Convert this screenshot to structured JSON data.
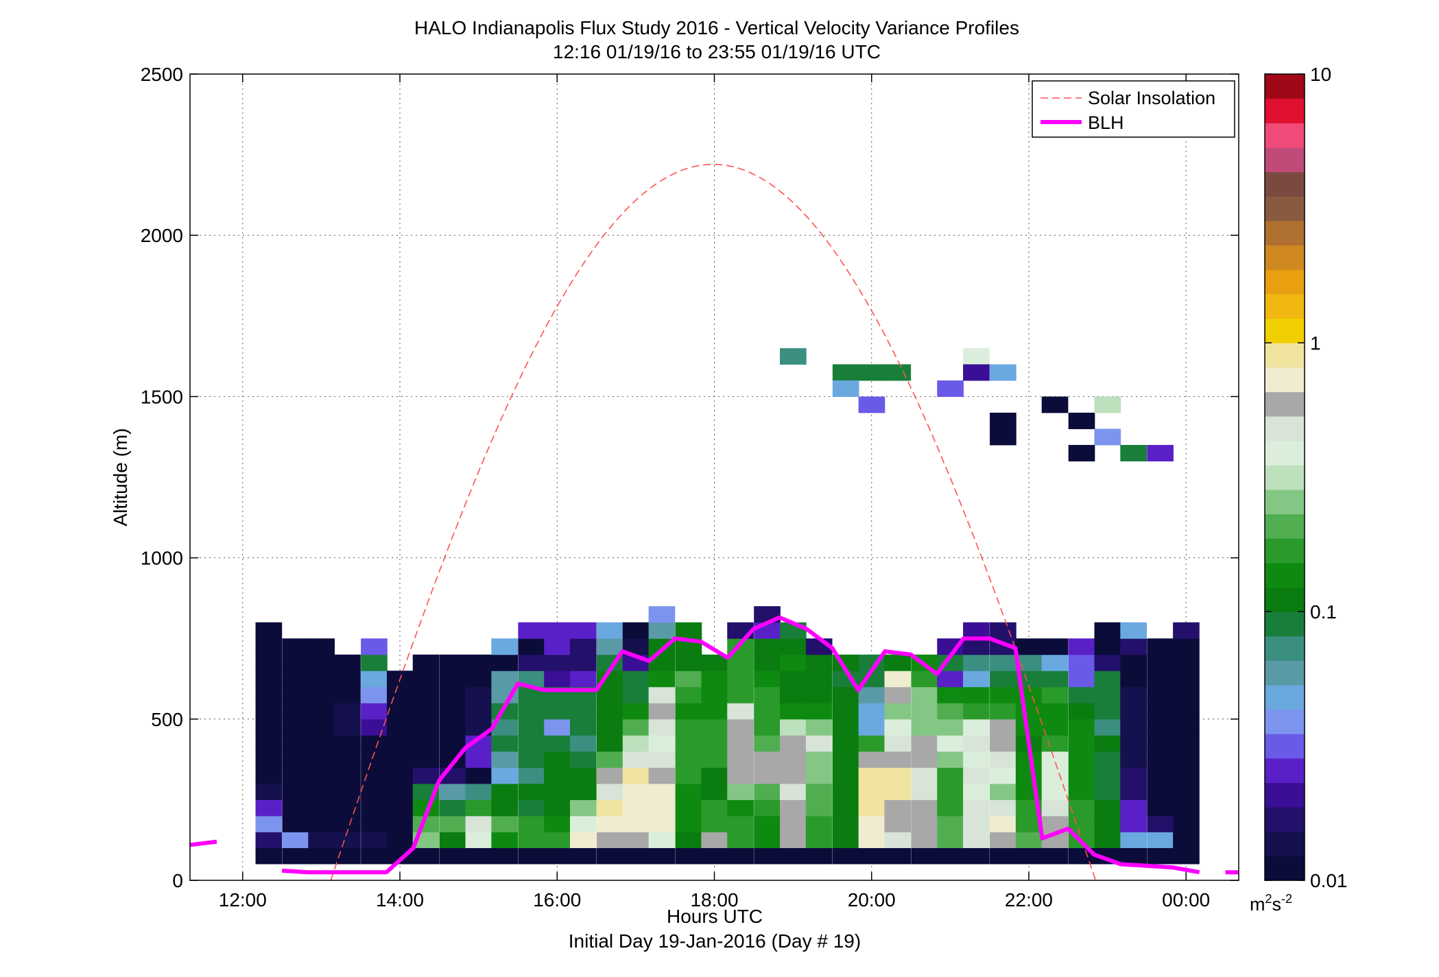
{
  "chart_data": {
    "type": "heatmap",
    "title": "HALO Indianapolis Flux Study 2016 - Vertical Velocity Variance Profiles",
    "subtitle": "12:16 01/19/16 to 23:55 01/19/16  UTC",
    "xlabel": "Hours UTC",
    "xlabel2": "Initial Day 19-Jan-2016 (Day # 19)",
    "ylabel": "Altitude (m)",
    "x_ticks": [
      {
        "hour": 12,
        "label": "12:00"
      },
      {
        "hour": 14,
        "label": "14:00"
      },
      {
        "hour": 16,
        "label": "16:00"
      },
      {
        "hour": 18,
        "label": "18:00"
      },
      {
        "hour": 20,
        "label": "20:00"
      },
      {
        "hour": 22,
        "label": "22:00"
      },
      {
        "hour": 24,
        "label": "00:00"
      }
    ],
    "y_ticks": [
      {
        "value": 0,
        "label": "0"
      },
      {
        "value": 500,
        "label": "500"
      },
      {
        "value": 1000,
        "label": "1000"
      },
      {
        "value": 1500,
        "label": "1500"
      },
      {
        "value": 2000,
        "label": "2000"
      },
      {
        "value": 2500,
        "label": "2500"
      }
    ],
    "xlim": [
      11.33,
      24.67
    ],
    "ylim": [
      0,
      2500
    ],
    "grid": true,
    "legend_position": "top-right",
    "legend": [
      {
        "name": "Solar Insolation",
        "color": "#ff5050",
        "style": "dashed"
      },
      {
        "name": "BLH",
        "color": "#ff00ff",
        "style": "solid"
      }
    ],
    "colorbar": {
      "scale": "log",
      "min": 0.01,
      "max": 10,
      "tick_labels": [
        "0.01",
        "0.1",
        "1",
        "10"
      ],
      "unit_base": "m",
      "unit_exp1": "2",
      "unit_mid": "s",
      "unit_exp2": "-2",
      "colors": [
        "#0b0c3a",
        "#15104e",
        "#23106a",
        "#3a0f96",
        "#5a20c8",
        "#6a5ae8",
        "#7c94ee",
        "#6aa8e0",
        "#5a9aa6",
        "#3a8f80",
        "#187e3a",
        "#0a7c10",
        "#0f8a10",
        "#2a9a2a",
        "#50ae50",
        "#84c784",
        "#bde0bd",
        "#dbeedb",
        "#d8e4d8",
        "#a8a8a8",
        "#f0ecd0",
        "#f0e4a0",
        "#f0d000",
        "#f0b810",
        "#e8a010",
        "#d08820",
        "#b07030",
        "#8a5a40",
        "#7a4a40",
        "#c04a78",
        "#f04a78",
        "#e01030",
        "#a00818"
      ]
    },
    "cell_width_hours": 0.333,
    "cell_height_m": 50,
    "cell_value_scale": "log10 of variance (m^2 s^-2)",
    "columns": [
      {
        "time": 12.33,
        "bottom": 100,
        "values": [
          -1.75,
          -1.45,
          -1.6,
          -1.9,
          -1.95,
          -1.95,
          -1.95,
          -1.95,
          -1.95,
          -1.95,
          -2,
          -2,
          -2,
          -2
        ]
      },
      {
        "time": 12.67,
        "bottom": 100,
        "values": [
          -1.45,
          -2,
          -2,
          -2,
          -2,
          -2,
          -2,
          -2,
          -2,
          -2,
          -2,
          -2,
          -2
        ]
      },
      {
        "time": 13.0,
        "bottom": 100,
        "values": [
          -1.9,
          -2,
          -2,
          -2,
          -2,
          -2,
          -2,
          -2,
          -2,
          -2,
          -2,
          -2,
          -2
        ]
      },
      {
        "time": 13.33,
        "bottom": 100,
        "values": [
          -1.9,
          -1.95,
          -1.95,
          -1.95,
          -1.95,
          -1.95,
          -1.95,
          -1.85,
          -1.9,
          -1.95,
          -1.95,
          -1.95
        ]
      },
      {
        "time": 13.67,
        "bottom": 100,
        "values": [
          -1.9,
          -2,
          -2,
          -1.95,
          -1.95,
          -1.95,
          -1.95,
          -1.7,
          -1.6,
          -1.45,
          -1.3,
          -1.05,
          -1.5
        ]
      },
      {
        "time": 14.0,
        "bottom": 100,
        "values": [
          -2,
          -2,
          -2,
          -2,
          -2,
          -2,
          -2,
          -2,
          -2,
          -2,
          -2
        ]
      },
      {
        "time": 14.33,
        "bottom": 100,
        "values": [
          -0.55,
          -0.65,
          -0.85,
          -1.05,
          -1.75,
          -1.95,
          -2,
          -2,
          -2,
          -2,
          -2,
          -2
        ]
      },
      {
        "time": 14.67,
        "bottom": 100,
        "values": [
          -0.95,
          -0.65,
          -1.05,
          -1.2,
          -1.75,
          -1.95,
          -2,
          -2,
          -2,
          -2,
          -2,
          -2
        ]
      },
      {
        "time": 15.0,
        "bottom": 100,
        "values": [
          -0.45,
          -0.35,
          -0.75,
          -1.1,
          -1.95,
          -1.55,
          -1.6,
          -1.85,
          -1.85,
          -1.9,
          -1.95,
          -1.95
        ]
      },
      {
        "time": 15.33,
        "bottom": 100,
        "values": [
          -0.85,
          -0.65,
          -0.95,
          -1.0,
          -1.35,
          -1.25,
          -1.05,
          -1.15,
          -1.05,
          -1.25,
          -1.2,
          -1.95,
          -1.35
        ]
      },
      {
        "time": 15.67,
        "bottom": 100,
        "values": [
          -0.75,
          -0.75,
          -1.05,
          -0.95,
          -1.1,
          -1.05,
          -1.05,
          -1.05,
          -1.05,
          -1.05,
          -1.1,
          -1.75,
          -1.95,
          -1.55
        ]
      },
      {
        "time": 16.0,
        "bottom": 100,
        "values": [
          -0.75,
          -0.85,
          -0.95,
          -0.95,
          -0.95,
          -1.0,
          -1.05,
          -1.4,
          -1.05,
          -1.05,
          -1.65,
          -1.75,
          -1.55,
          -1.55
        ]
      },
      {
        "time": 16.33,
        "bottom": 100,
        "values": [
          -0.15,
          -0.45,
          -0.55,
          -0.95,
          -1.0,
          -1.05,
          -1.1,
          -1.05,
          -1.05,
          -1.05,
          -1.55,
          -1.8,
          -1.75,
          -1.55
        ]
      },
      {
        "time": 16.67,
        "bottom": 100,
        "values": [
          -0.25,
          -0.15,
          -0.05,
          -0.35,
          -0.25,
          -0.65,
          -0.95,
          -1.0,
          -1.0,
          -1.0,
          -0.95,
          -1.05,
          -1.25,
          -1.3
        ]
      },
      {
        "time": 17.0,
        "bottom": 100,
        "values": [
          -0.2,
          -0.15,
          -0.1,
          -0.1,
          -0.05,
          -0.35,
          -0.5,
          -0.65,
          -0.85,
          -1.05,
          -1.05,
          -1.7,
          -1.9,
          -1.95
        ]
      },
      {
        "time": 17.33,
        "bottom": 100,
        "values": [
          -0.4,
          -0.1,
          -0.15,
          -0.15,
          -0.25,
          -0.35,
          -0.45,
          -0.35,
          -0.25,
          -0.35,
          -0.9,
          -0.95,
          -0.95,
          -1.2,
          -1.4
        ]
      },
      {
        "time": 17.67,
        "bottom": 100,
        "values": [
          -0.95,
          -0.85,
          -0.85,
          -0.85,
          -0.75,
          -0.75,
          -0.75,
          -0.75,
          -0.85,
          -0.75,
          -0.65,
          -0.95,
          -0.95,
          -1.0
        ]
      },
      {
        "time": 18.0,
        "bottom": 100,
        "values": [
          -0.25,
          -0.75,
          -0.75,
          -1.0,
          -1.0,
          -0.75,
          -0.75,
          -0.75,
          -0.85,
          -0.85,
          -0.85,
          -0.95
        ]
      },
      {
        "time": 18.33,
        "bottom": 100,
        "values": [
          -0.75,
          -0.75,
          -0.85,
          -0.55,
          -0.25,
          -0.2,
          -0.2,
          -0.25,
          -0.35,
          -0.75,
          -0.75,
          -0.75,
          -0.8,
          -1.75
        ]
      },
      {
        "time": 18.67,
        "bottom": 100,
        "values": [
          -0.85,
          -0.85,
          -0.75,
          -0.65,
          -0.2,
          -0.25,
          -0.65,
          -0.75,
          -0.8,
          -0.8,
          -0.85,
          -0.95,
          -1.0,
          -1.6,
          -1.75
        ]
      },
      {
        "time": 19.0,
        "bottom": 100,
        "values": [
          -0.25,
          -0.25,
          -0.2,
          -0.35,
          -0.2,
          -0.25,
          -0.25,
          -0.5,
          -0.85,
          -0.95,
          -0.95,
          -0.9,
          -1.0,
          -1.05
        ]
      },
      {
        "time": 19.33,
        "bottom": 100,
        "values": [
          -0.75,
          -0.75,
          -0.65,
          -0.65,
          -0.55,
          -0.55,
          -0.35,
          -0.55,
          -0.85,
          -0.95,
          -0.95,
          -1.0,
          -1.75
        ]
      },
      {
        "time": 19.67,
        "bottom": 100,
        "values": [
          -0.95,
          -0.95,
          -0.95,
          -1.0,
          -1.0,
          -0.95,
          -0.95,
          -0.95,
          -0.95,
          -1.0,
          -1.05,
          -1.0
        ]
      },
      {
        "time": 20.0,
        "bottom": 100,
        "values": [
          -0.1,
          -0.1,
          -0.05,
          -0.05,
          -0.05,
          -0.25,
          -0.75,
          -1.35,
          -1.35,
          -1.25,
          -1.05,
          -1.05
        ]
      },
      {
        "time": 20.33,
        "bottom": 100,
        "values": [
          -0.35,
          -0.25,
          -0.25,
          -0.05,
          -0.05,
          -0.25,
          -0.35,
          -0.45,
          -0.55,
          -0.25,
          -0.15,
          -0.95
        ]
      },
      {
        "time": 20.67,
        "bottom": 100,
        "values": [
          -0.25,
          -0.25,
          -0.25,
          -0.35,
          -0.35,
          -0.25,
          -0.25,
          -0.55,
          -0.55,
          -0.55,
          -0.75,
          -0.85
        ]
      },
      {
        "time": 21.0,
        "bottom": 100,
        "values": [
          -0.65,
          -0.65,
          -0.75,
          -0.75,
          -0.75,
          -0.55,
          -0.45,
          -0.55,
          -0.65,
          -0.85,
          -1.6,
          -1.05,
          -1.65
        ]
      },
      {
        "time": 21.33,
        "bottom": 100,
        "values": [
          -0.35,
          -0.35,
          -0.35,
          -0.45,
          -0.35,
          -0.45,
          -0.35,
          -0.45,
          -0.75,
          -0.85,
          -1.35,
          -1.1,
          -1.75,
          -1.7
        ]
      },
      {
        "time": 21.67,
        "bottom": 100,
        "values": [
          -0.25,
          -0.15,
          -0.35,
          -0.55,
          -0.45,
          -0.35,
          -0.25,
          -0.25,
          -0.75,
          -0.85,
          -1.05,
          -1.1,
          -1.8,
          -1.75
        ]
      },
      {
        "time": 22.0,
        "bottom": 100,
        "values": [
          -0.65,
          -0.75,
          -0.75,
          -0.85,
          -0.85,
          -0.85,
          -0.95,
          -0.85,
          -0.85,
          -0.85,
          -1.05,
          -1.1,
          -1.95
        ]
      },
      {
        "time": 22.33,
        "bottom": 100,
        "values": [
          -0.25,
          -0.25,
          -0.35,
          -0.45,
          -0.45,
          -0.45,
          -0.75,
          -0.85,
          -0.85,
          -0.75,
          -1.05,
          -1.35,
          -1.95
        ]
      },
      {
        "time": 22.67,
        "bottom": 100,
        "values": [
          -0.75,
          -0.75,
          -0.75,
          -0.85,
          -0.85,
          -0.85,
          -0.85,
          -0.85,
          -0.95,
          -1.05,
          -1.5,
          -1.5,
          -1.6
        ]
      },
      {
        "time": 23.0,
        "bottom": 100,
        "values": [
          -0.95,
          -0.95,
          -0.95,
          -1.05,
          -1.05,
          -1.05,
          -0.95,
          -1.1,
          -1.05,
          -1.05,
          -1.05,
          -1.75,
          -1.95,
          -1.95
        ]
      },
      {
        "time": 23.33,
        "bottom": 100,
        "values": [
          -1.35,
          -1.55,
          -1.55,
          -1.75,
          -1.75,
          -1.85,
          -1.85,
          -1.85,
          -1.85,
          -1.9,
          -1.95,
          -1.95,
          -1.75,
          -1.35
        ]
      },
      {
        "time": 23.67,
        "bottom": 100,
        "values": [
          -1.35,
          -1.75,
          -1.95,
          -1.95,
          -1.95,
          -1.95,
          -1.95,
          -1.95,
          -1.95,
          -1.95,
          -1.95,
          -1.95,
          -1.95
        ]
      },
      {
        "time": 24.0,
        "bottom": 100,
        "values": [
          -2,
          -2,
          -2,
          -2,
          -2,
          -2,
          -2,
          -2,
          -2,
          -2,
          -2,
          -2,
          -1.95,
          -1.75
        ]
      }
    ],
    "scattered_cells": [
      {
        "time": 19.0,
        "alt": 1600,
        "value": -1.15
      },
      {
        "time": 19.67,
        "alt": 1550,
        "value": -1.05
      },
      {
        "time": 20.0,
        "alt": 1550,
        "value": -1.05
      },
      {
        "time": 20.33,
        "alt": 1550,
        "value": -1.05
      },
      {
        "time": 19.67,
        "alt": 1500,
        "value": -1.35
      },
      {
        "time": 20.0,
        "alt": 1450,
        "value": -1.5
      },
      {
        "time": 21.0,
        "alt": 1500,
        "value": -1.5
      },
      {
        "time": 21.33,
        "alt": 1600,
        "value": -0.45
      },
      {
        "time": 21.33,
        "alt": 1550,
        "value": -1.7
      },
      {
        "time": 21.67,
        "alt": 1550,
        "value": -1.35
      },
      {
        "time": 21.67,
        "alt": 1400,
        "value": -2
      },
      {
        "time": 21.67,
        "alt": 1350,
        "value": -2
      },
      {
        "time": 22.33,
        "alt": 1450,
        "value": -2
      },
      {
        "time": 22.67,
        "alt": 1400,
        "value": -2
      },
      {
        "time": 23.0,
        "alt": 1450,
        "value": -0.5
      },
      {
        "time": 23.0,
        "alt": 1350,
        "value": -1.4
      },
      {
        "time": 22.67,
        "alt": 1300,
        "value": -2
      },
      {
        "time": 23.33,
        "alt": 1300,
        "value": -1.05
      },
      {
        "time": 23.67,
        "alt": 1300,
        "value": -1.6
      }
    ],
    "blh": {
      "x": [
        11.33,
        11.67,
        12.5,
        12.83,
        13.17,
        13.5,
        13.83,
        14.17,
        14.5,
        14.83,
        15.17,
        15.5,
        15.83,
        16.17,
        16.5,
        16.83,
        17.17,
        17.5,
        17.83,
        18.17,
        18.5,
        18.83,
        19.17,
        19.5,
        19.83,
        20.17,
        20.5,
        20.83,
        21.17,
        21.5,
        21.83,
        22.17,
        22.5,
        22.83,
        23.17,
        23.5,
        23.83,
        24.17,
        24.5,
        24.67
      ],
      "y": [
        110,
        120,
        30,
        25,
        25,
        25,
        25,
        100,
        310,
        410,
        470,
        610,
        590,
        590,
        590,
        710,
        680,
        750,
        740,
        690,
        780,
        815,
        780,
        720,
        590,
        710,
        700,
        640,
        750,
        750,
        720,
        130,
        160,
        80,
        50,
        45,
        40,
        25,
        25,
        25
      ],
      "breaks_after_index": [
        1,
        37
      ]
    },
    "solar": {
      "peak_hour": 17.95,
      "peak_alt": 2220,
      "zero_start": 13.12,
      "zero_end": 22.85
    }
  }
}
